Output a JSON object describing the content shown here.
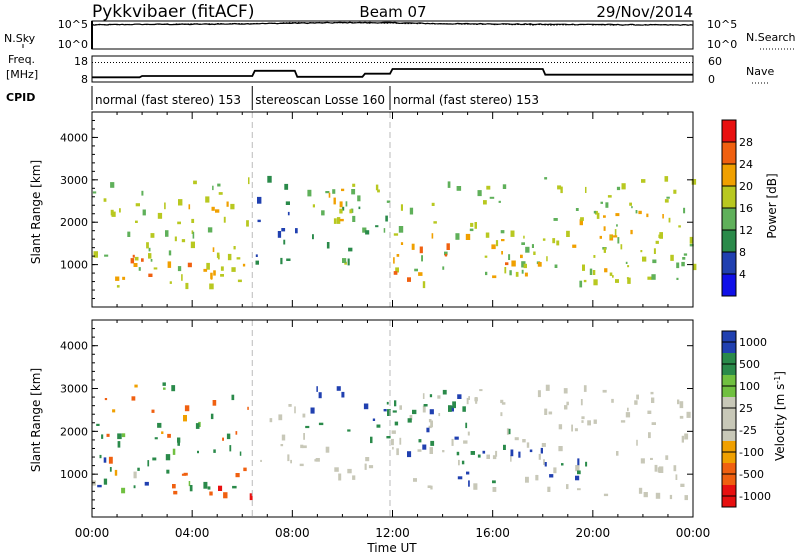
{
  "header": {
    "station": "Pykkvibaer (fitACF)",
    "beam": "Beam 07",
    "date": "29/Nov/2014"
  },
  "nsky_panel": {
    "left_label": "N.Sky",
    "left_ticks": [
      "10^5",
      "10^0"
    ],
    "right_label": "N.Search",
    "right_ticks": [
      "10^5",
      "10^0"
    ]
  },
  "freq_panel": {
    "left_label_line1": "Freq.",
    "left_label_line2": "[MHz]",
    "left_ticks": [
      "18",
      "8"
    ],
    "right_label": "Nave",
    "right_ticks": [
      "60",
      "0"
    ]
  },
  "cpid_panel": {
    "label": "CPID",
    "segments": [
      {
        "start": 0.0,
        "end": 6.4,
        "label": "normal (fast stereo) 153"
      },
      {
        "start": 6.4,
        "end": 11.9,
        "label": "stereoscan Losse 160"
      },
      {
        "start": 11.9,
        "end": 24.0,
        "label": "normal (fast stereo) 153"
      }
    ]
  },
  "xaxis": {
    "label": "Time UT",
    "ticks": [
      "00:00",
      "04:00",
      "08:00",
      "12:00",
      "16:00",
      "20:00",
      "00:00"
    ]
  },
  "colors": {
    "power": [
      "#1010e8",
      "#2040b0",
      "#2a8a4a",
      "#5fb05a",
      "#b8c820",
      "#f0a000",
      "#f06010",
      "#e81010"
    ],
    "velocity": [
      "#e81010",
      "#f06010",
      "#f0a000",
      "#c8c8b8",
      "#c8c8b8",
      "#70c040",
      "#2a8a4a",
      "#2040b0"
    ]
  },
  "chart_data": [
    {
      "type": "line",
      "name": "nsky",
      "x": [
        0,
        2,
        4,
        6,
        8,
        10,
        12,
        14,
        16,
        18,
        20,
        22,
        24
      ],
      "series": [
        {
          "name": "N.Sky",
          "values": [
            4.3,
            4.4,
            4.4,
            4.5,
            4.6,
            4.7,
            4.7,
            4.5,
            4.5,
            4.4,
            4.4,
            4.3,
            4.3
          ]
        },
        {
          "name": "N.Search",
          "values": [
            4.3,
            4.4,
            4.5,
            4.5,
            4.7,
            4.7,
            4.6,
            4.5,
            4.4,
            4.3,
            4.3,
            4.3,
            4.3
          ]
        }
      ]
    },
    {
      "type": "line",
      "name": "frequency",
      "x": [
        0,
        1.9,
        2.0,
        6.4,
        6.5,
        8.1,
        8.2,
        10.8,
        10.9,
        11.9,
        12.0,
        18.0,
        18.1,
        24.0
      ],
      "series": [
        {
          "name": "Freq.",
          "values": [
            9.8,
            9.8,
            10.3,
            10.3,
            12.3,
            12.3,
            10.0,
            10.0,
            11.2,
            11.2,
            13.0,
            13.0,
            10.8,
            10.8
          ]
        }
      ],
      "ylim": [
        8,
        18
      ],
      "nave_level": 45
    },
    {
      "type": "heatmap",
      "name": "power",
      "ylabel": "Slant Range [km]",
      "yticks": [
        1000,
        2000,
        3000,
        4000
      ],
      "ylim": [
        0,
        4600
      ],
      "xlim": [
        0,
        24
      ],
      "colorbar": {
        "label": "Power [dB]",
        "ticks": [
          4,
          8,
          12,
          16,
          20,
          24,
          28
        ]
      },
      "regions": [
        {
          "t0": 0.0,
          "t1": 6.3,
          "r0": 500,
          "r1": 3150,
          "v0": 16,
          "v1": 22
        },
        {
          "t0": 0.5,
          "t1": 6.3,
          "r0": 700,
          "r1": 1500,
          "v0": 22,
          "v1": 28
        },
        {
          "t0": 2.5,
          "t1": 5.5,
          "r0": 1900,
          "r1": 2600,
          "v0": 20,
          "v1": 26
        },
        {
          "t0": 6.5,
          "t1": 8.5,
          "r0": 1000,
          "r1": 3100,
          "v0": 6,
          "v1": 12
        },
        {
          "t0": 8.5,
          "t1": 11.9,
          "r0": 900,
          "r1": 3100,
          "v0": 12,
          "v1": 20
        },
        {
          "t0": 8.6,
          "t1": 11.5,
          "r0": 1900,
          "r1": 3000,
          "v0": 18,
          "v1": 26
        },
        {
          "t0": 11.9,
          "t1": 24.0,
          "r0": 600,
          "r1": 3100,
          "v0": 14,
          "v1": 22
        },
        {
          "t0": 12.0,
          "t1": 17.5,
          "r0": 700,
          "r1": 1800,
          "v0": 22,
          "v1": 30
        },
        {
          "t0": 17.5,
          "t1": 23.5,
          "r0": 900,
          "r1": 2300,
          "v0": 18,
          "v1": 26
        }
      ]
    },
    {
      "type": "heatmap",
      "name": "velocity",
      "ylabel": "Slant Range [km]",
      "yticks": [
        1000,
        2000,
        3000,
        4000
      ],
      "ylim": [
        0,
        4600
      ],
      "xlim": [
        0,
        24
      ],
      "colorbar": {
        "label": "Velocity [m s^-1]",
        "ticks": [
          1000,
          500,
          100,
          25,
          -25,
          -100,
          -500,
          -1000
        ]
      },
      "regions": [
        {
          "t0": 0.0,
          "t1": 6.3,
          "r0": 500,
          "r1": 3150,
          "v0": -200,
          "v1": 300
        },
        {
          "t0": 0.2,
          "t1": 2.5,
          "r0": 700,
          "r1": 1500,
          "v0": 200,
          "v1": 900
        },
        {
          "t0": 3.5,
          "t1": 6.3,
          "r0": 500,
          "r1": 1200,
          "v0": -700,
          "v1": -100
        },
        {
          "t0": 6.5,
          "t1": 8.5,
          "r0": 1000,
          "r1": 3100,
          "v0": -20,
          "v1": 20
        },
        {
          "t0": 8.5,
          "t1": 11.9,
          "r0": 1700,
          "r1": 3100,
          "v0": 150,
          "v1": 900
        },
        {
          "t0": 8.5,
          "t1": 11.9,
          "r0": 900,
          "r1": 1800,
          "v0": -20,
          "v1": 20
        },
        {
          "t0": 11.9,
          "t1": 24.0,
          "r0": 500,
          "r1": 3100,
          "v0": -20,
          "v1": 20
        },
        {
          "t0": 12.0,
          "t1": 17.0,
          "r0": 1500,
          "r1": 3000,
          "v0": 200,
          "v1": 800
        },
        {
          "t0": 14.0,
          "t1": 20.0,
          "r0": 800,
          "r1": 1700,
          "v0": 300,
          "v1": 900
        }
      ]
    }
  ]
}
